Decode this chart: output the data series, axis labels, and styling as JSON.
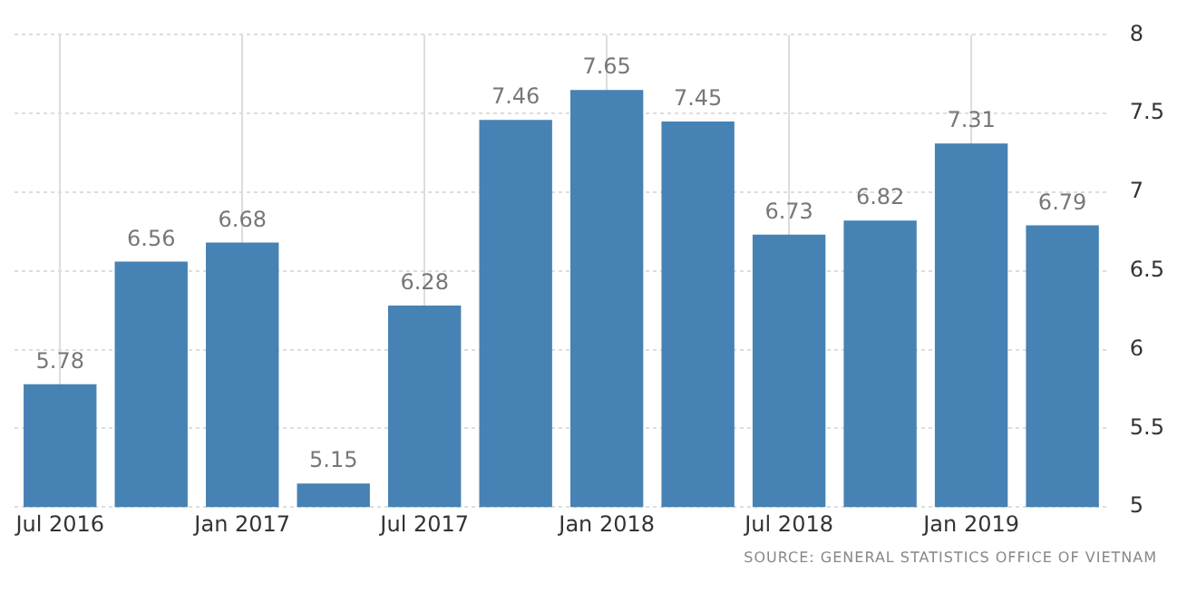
{
  "chart_data": {
    "type": "bar",
    "categories": [
      "Jul 2016",
      null,
      "Jan 2017",
      null,
      "Jul 2017",
      null,
      "Jan 2018",
      null,
      "Jul 2018",
      null,
      "Jan 2019",
      null
    ],
    "values": [
      5.78,
      6.56,
      6.68,
      5.15,
      6.28,
      7.46,
      7.65,
      7.45,
      6.73,
      6.82,
      7.31,
      6.79
    ],
    "color": "#4682b4",
    "ylim": [
      5,
      8
    ],
    "yticks": [
      5,
      5.5,
      6,
      6.5,
      7,
      7.5,
      8
    ],
    "grid": true,
    "data_labels": true,
    "annotations": [
      "SOURCE: GENERAL STATISTICS OFFICE OF VIETNAM"
    ]
  }
}
